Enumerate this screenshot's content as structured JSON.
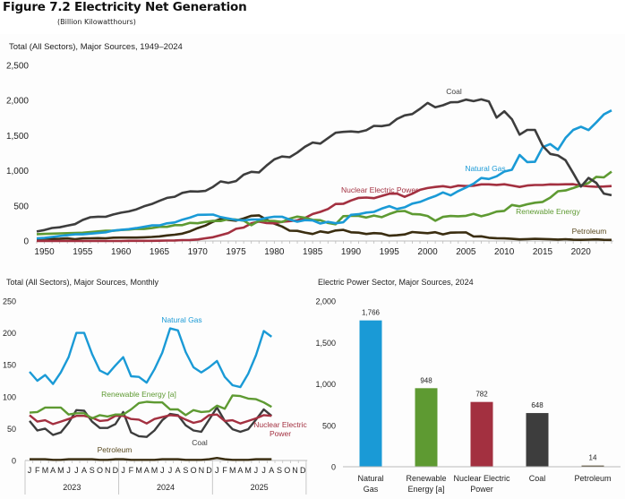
{
  "figure": {
    "title": "Figure 7.2  Electricity Net Generation",
    "units": "(Billion Kilowatthours)"
  },
  "colors": {
    "coal": "#3d3d3d",
    "natural_gas": "#1a9ad6",
    "nuclear": "#a33040",
    "renewable": "#5e9a32",
    "petroleum": "#3a2d10",
    "axis": "#bbbbbb"
  },
  "chart_data": [
    {
      "id": "annual",
      "type": "line",
      "title": "Total (All Sectors), Major Sources, 1949–2024",
      "xlabel": "",
      "ylabel": "",
      "xlim": [
        1949,
        2024
      ],
      "ylim": [
        0,
        2500
      ],
      "yticks": [
        0,
        500,
        1000,
        1500,
        2000,
        2500
      ],
      "ytick_labels": [
        "0",
        "500",
        "1,000",
        "1,500",
        "2,000",
        "2,500"
      ],
      "xticks": [
        1950,
        1955,
        1960,
        1965,
        1970,
        1975,
        1980,
        1985,
        1990,
        1995,
        2000,
        2005,
        2010,
        2015,
        2020
      ],
      "grid": false,
      "legend": "inline labels",
      "x_start": 1949,
      "series": [
        {
          "key": "coal",
          "name": "Coal",
          "values": [
            135,
            155,
            185,
            195,
            218,
            240,
            300,
            338,
            346,
            344,
            378,
            403,
            421,
            450,
            493,
            526,
            571,
            613,
            630,
            685,
            706,
            704,
            713,
            771,
            848,
            828,
            853,
            944,
            985,
            976,
            1075,
            1162,
            1203,
            1192,
            1259,
            1342,
            1402,
            1386,
            1464,
            1541,
            1554,
            1560,
            1551,
            1576,
            1639,
            1635,
            1653,
            1737,
            1788,
            1807,
            1882,
            1966,
            1904,
            1933,
            1974,
            1978,
            2013,
            1991,
            2016,
            1986,
            1756,
            1847,
            1733,
            1514,
            1581,
            1582,
            1356,
            1240,
            1218,
            1149,
            966,
            774,
            898,
            828,
            675,
            652
          ]
        },
        {
          "key": "natural_gas",
          "name": "Natural Gas",
          "values": [
            37,
            45,
            57,
            71,
            81,
            95,
            95,
            104,
            114,
            124,
            148,
            158,
            169,
            184,
            202,
            222,
            222,
            251,
            264,
            304,
            333,
            373,
            374,
            376,
            341,
            320,
            300,
            295,
            305,
            305,
            329,
            346,
            346,
            305,
            274,
            297,
            292,
            249,
            273,
            253,
            267,
            373,
            382,
            404,
            415,
            460,
            496,
            455,
            479,
            532,
            556,
            601,
            639,
            691,
            649,
            710,
            761,
            816,
            897,
            883,
            921,
            988,
            1014,
            1225,
            1124,
            1127,
            1335,
            1380,
            1298,
            1468,
            1582,
            1626,
            1579,
            1688,
            1802,
            1860
          ]
        },
        {
          "key": "nuclear",
          "name": "Nuclear Electric Power",
          "values": [
            0,
            0,
            0,
            0,
            0,
            0,
            0,
            0,
            0,
            0,
            0,
            0,
            2,
            2,
            3,
            3,
            4,
            6,
            8,
            13,
            14,
            22,
            38,
            54,
            83,
            114,
            173,
            191,
            251,
            276,
            255,
            251,
            273,
            283,
            294,
            328,
            384,
            414,
            455,
            527,
            529,
            577,
            613,
            619,
            610,
            640,
            673,
            675,
            629,
            673,
            728,
            754,
            769,
            780,
            764,
            788,
            782,
            787,
            806,
            806,
            799,
            807,
            790,
            769,
            789,
            797,
            797,
            806,
            805,
            807,
            809,
            790,
            778,
            772,
            775,
            782
          ]
        },
        {
          "key": "renewable",
          "name": "Renewable Energy",
          "values": [
            97,
            101,
            104,
            109,
            111,
            115,
            117,
            126,
            136,
            146,
            146,
            157,
            162,
            174,
            171,
            184,
            201,
            201,
            226,
            226,
            258,
            253,
            272,
            286,
            285,
            310,
            305,
            289,
            225,
            287,
            288,
            284,
            271,
            317,
            347,
            331,
            301,
            296,
            256,
            238,
            353,
            357,
            357,
            334,
            362,
            339,
            384,
            421,
            427,
            384,
            379,
            356,
            288,
            343,
            356,
            352,
            358,
            386,
            352,
            380,
            419,
            428,
            513,
            494,
            523,
            545,
            556,
            617,
            708,
            720,
            754,
            792,
            826,
            913,
            906,
            987
          ]
        },
        {
          "key": "petroleum",
          "name": "Petroleum",
          "values": [
            29,
            34,
            29,
            31,
            37,
            26,
            37,
            38,
            41,
            38,
            47,
            48,
            48,
            49,
            52,
            57,
            65,
            79,
            89,
            104,
            138,
            184,
            220,
            274,
            314,
            301,
            289,
            320,
            358,
            365,
            303,
            246,
            206,
            147,
            144,
            120,
            100,
            136,
            118,
            149,
            158,
            124,
            119,
            100,
            112,
            106,
            75,
            81,
            93,
            128,
            118,
            111,
            125,
            95,
            119,
            121,
            122,
            64,
            66,
            46,
            39,
            37,
            30,
            23,
            27,
            30,
            28,
            24,
            21,
            25,
            18,
            17,
            19,
            23,
            16,
            15
          ]
        }
      ]
    },
    {
      "id": "monthly",
      "type": "line",
      "title": "Total (All Sectors), Major Sources, Monthly",
      "xlabel": "",
      "ylabel": "",
      "ylim": [
        0,
        250
      ],
      "yticks": [
        0,
        50,
        100,
        150,
        200,
        250
      ],
      "ytick_labels": [
        "0",
        "50",
        "100",
        "150",
        "200",
        "250"
      ],
      "month_labels": [
        "J",
        "F",
        "M",
        "A",
        "M",
        "J",
        "J",
        "A",
        "S",
        "O",
        "N",
        "D"
      ],
      "years": [
        "2023",
        "2024",
        "2025"
      ],
      "grid": false,
      "legend": "inline labels",
      "series": [
        {
          "key": "natural_gas",
          "name": "Natural Gas",
          "values": [
            139,
            125,
            134,
            120,
            138,
            162,
            200,
            200,
            167,
            141,
            135,
            149,
            162,
            132,
            131,
            122,
            143,
            169,
            207,
            204,
            170,
            146,
            138,
            146,
            156,
            131,
            118,
            115,
            136,
            165,
            203,
            194
          ]
        },
        {
          "key": "renewable",
          "name": "Renewable Energy [a]",
          "values": [
            75,
            76,
            83,
            83,
            83,
            72,
            74,
            74,
            66,
            71,
            69,
            72,
            72,
            80,
            90,
            92,
            91,
            91,
            80,
            80,
            71,
            79,
            76,
            77,
            86,
            81,
            102,
            101,
            97,
            96,
            91,
            84
          ]
        },
        {
          "key": "nuclear",
          "name": "Nuclear Electric Power",
          "values": [
            71,
            61,
            63,
            57,
            61,
            65,
            70,
            70,
            67,
            62,
            63,
            70,
            70,
            65,
            64,
            58,
            65,
            68,
            71,
            70,
            64,
            59,
            62,
            71,
            72,
            62,
            63,
            58,
            62,
            66,
            71,
            70
          ]
        },
        {
          "key": "coal",
          "name": "Coal",
          "values": [
            62,
            47,
            50,
            40,
            44,
            59,
            79,
            78,
            61,
            51,
            51,
            57,
            76,
            44,
            38,
            37,
            47,
            63,
            73,
            71,
            55,
            47,
            45,
            64,
            83,
            62,
            49,
            45,
            49,
            64,
            80,
            70
          ]
        },
        {
          "key": "petroleum",
          "name": "Petroleum",
          "values": [
            2,
            2,
            2,
            1,
            1,
            2,
            2,
            2,
            2,
            1,
            1,
            2,
            2,
            1,
            1,
            1,
            1,
            2,
            2,
            2,
            1,
            1,
            1,
            2,
            4,
            2,
            1,
            1,
            1,
            2,
            2,
            2
          ]
        }
      ]
    },
    {
      "id": "sector2024",
      "type": "bar",
      "title": "Electric Power Sector, Major Sources, 2024",
      "xlabel": "",
      "ylabel": "",
      "ylim": [
        0,
        2000
      ],
      "yticks": [
        0,
        500,
        1000,
        1500,
        2000
      ],
      "ytick_labels": [
        "0",
        "500",
        "1,000",
        "1,500",
        "2,000"
      ],
      "grid": false,
      "categories": [
        {
          "key": "natural_gas",
          "lines": [
            "Natural",
            "Gas"
          ]
        },
        {
          "key": "renewable",
          "lines": [
            "Renewable",
            "Energy [a]"
          ]
        },
        {
          "key": "nuclear",
          "lines": [
            "Nuclear Electric",
            "Power"
          ]
        },
        {
          "key": "coal",
          "lines": [
            "Coal"
          ]
        },
        {
          "key": "petroleum",
          "lines": [
            "Petroleum"
          ]
        }
      ],
      "values": [
        1766,
        948,
        782,
        648,
        14
      ],
      "value_labels": [
        "1,766",
        "948",
        "782",
        "648",
        "14"
      ]
    }
  ]
}
